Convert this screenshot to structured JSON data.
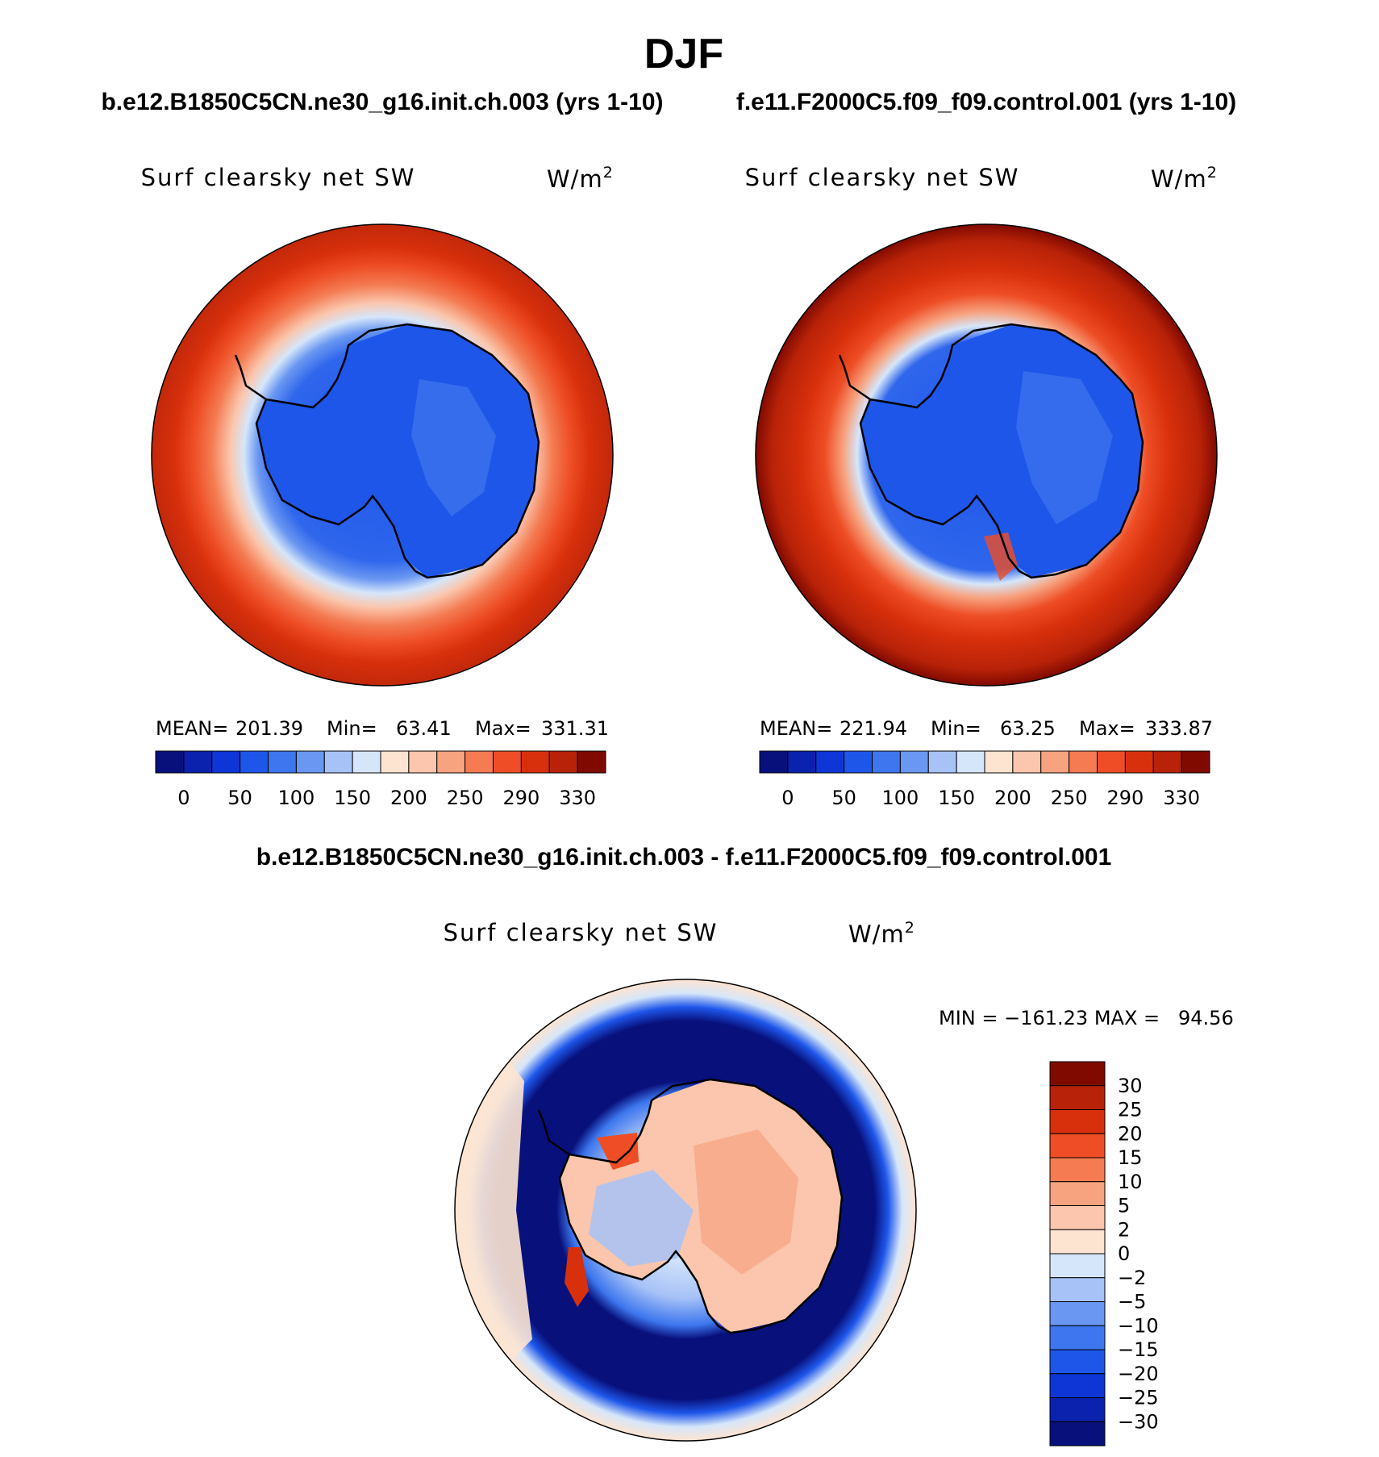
{
  "page_title": "DJF",
  "chart_data": [
    {
      "type": "polar-contour-map",
      "case_label": "b.e12.B1850C5CN.ne30_g16.init.ch.003 (yrs 1-10)",
      "variable": "Surf clearsky net SW",
      "units_base": "W/m",
      "units_exp": "2",
      "stats": {
        "mean_label": "MEAN=",
        "mean": "201.39",
        "min_label": "Min=",
        "min": "63.41",
        "max_label": "Max=",
        "max": "331.31"
      },
      "colorbar_ticks": [
        "0",
        "50",
        "100",
        "150",
        "200",
        "250",
        "290",
        "330"
      ],
      "colorbar_colors": [
        "#08107c",
        "#0a22ad",
        "#0e36d6",
        "#1e56ea",
        "#3d76ee",
        "#6a97f2",
        "#a7c2f7",
        "#d6e6fa",
        "#fde4d1",
        "#fbc6ad",
        "#f7a380",
        "#f47b52",
        "#ee4d25",
        "#d8300c",
        "#b82208",
        "#800a00"
      ]
    },
    {
      "type": "polar-contour-map",
      "case_label": "f.e11.F2000C5.f09_f09.control.001 (yrs 1-10)",
      "variable": "Surf clearsky net SW",
      "units_base": "W/m",
      "units_exp": "2",
      "stats": {
        "mean_label": "MEAN=",
        "mean": "221.94",
        "min_label": "Min=",
        "min": "63.25",
        "max_label": "Max=",
        "max": "333.87"
      },
      "colorbar_ticks": [
        "0",
        "50",
        "100",
        "150",
        "200",
        "250",
        "290",
        "330"
      ],
      "colorbar_colors": [
        "#08107c",
        "#0a22ad",
        "#0e36d6",
        "#1e56ea",
        "#3d76ee",
        "#6a97f2",
        "#a7c2f7",
        "#d6e6fa",
        "#fde4d1",
        "#fbc6ad",
        "#f7a380",
        "#f47b52",
        "#ee4d25",
        "#d8300c",
        "#b82208",
        "#800a00"
      ]
    },
    {
      "type": "polar-contour-map-difference",
      "case_label": "b.e12.B1850C5CN.ne30_g16.init.ch.003 - f.e11.F2000C5.f09_f09.control.001",
      "variable": "Surf clearsky net SW",
      "units_base": "W/m",
      "units_exp": "2",
      "minmax_text": "MIN = −161.23 MAX =   94.56",
      "colorbar_ticks": [
        "30",
        "25",
        "20",
        "15",
        "10",
        "5",
        "2",
        "0",
        "−2",
        "−5",
        "−10",
        "−15",
        "−20",
        "−25",
        "−30"
      ],
      "colorbar_colors": [
        "#800a00",
        "#b82208",
        "#d8300c",
        "#ee4d25",
        "#f47b52",
        "#f7a380",
        "#fbc6ad",
        "#fde4d1",
        "#d6e6fa",
        "#a7c2f7",
        "#6a97f2",
        "#3d76ee",
        "#1e56ea",
        "#0e36d6",
        "#0a22ad",
        "#08107c"
      ]
    }
  ]
}
